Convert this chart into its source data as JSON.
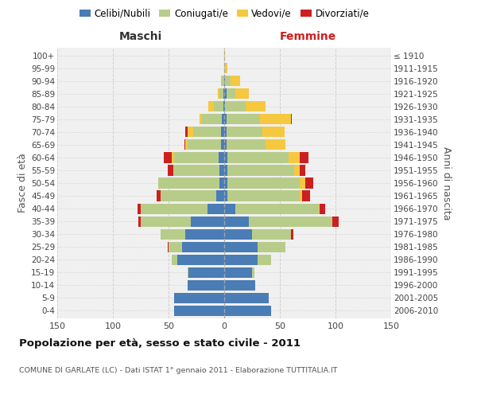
{
  "age_groups": [
    "0-4",
    "5-9",
    "10-14",
    "15-19",
    "20-24",
    "25-29",
    "30-34",
    "35-39",
    "40-44",
    "45-49",
    "50-54",
    "55-59",
    "60-64",
    "65-69",
    "70-74",
    "75-79",
    "80-84",
    "85-89",
    "90-94",
    "95-99",
    "100+"
  ],
  "birth_years": [
    "2006-2010",
    "2001-2005",
    "1996-2000",
    "1991-1995",
    "1986-1990",
    "1981-1985",
    "1976-1980",
    "1971-1975",
    "1966-1970",
    "1961-1965",
    "1956-1960",
    "1951-1955",
    "1946-1950",
    "1941-1945",
    "1936-1940",
    "1931-1935",
    "1926-1930",
    "1921-1925",
    "1916-1920",
    "1911-1915",
    "≤ 1910"
  ],
  "colors": {
    "celibi": "#4a7cb5",
    "coniugati": "#b8cc8a",
    "vedovi": "#f5c840",
    "divorziati": "#cc2020"
  },
  "maschi_celibi": [
    45,
    45,
    33,
    32,
    42,
    38,
    35,
    30,
    15,
    7,
    4,
    4,
    5,
    3,
    3,
    2,
    1,
    1,
    0,
    0,
    0
  ],
  "maschi_coniugati": [
    0,
    0,
    0,
    1,
    5,
    12,
    22,
    45,
    60,
    50,
    55,
    42,
    40,
    30,
    25,
    18,
    8,
    3,
    2,
    0,
    0
  ],
  "maschi_vedovi": [
    0,
    0,
    0,
    0,
    0,
    0,
    0,
    0,
    0,
    0,
    0,
    0,
    2,
    2,
    5,
    2,
    5,
    2,
    1,
    0,
    0
  ],
  "maschi_divorziati": [
    0,
    0,
    0,
    0,
    0,
    1,
    0,
    2,
    3,
    4,
    0,
    5,
    7,
    1,
    2,
    0,
    0,
    0,
    0,
    0,
    0
  ],
  "femmine_celibi": [
    42,
    40,
    28,
    25,
    30,
    30,
    25,
    22,
    10,
    3,
    3,
    3,
    3,
    2,
    2,
    2,
    1,
    2,
    1,
    0,
    0
  ],
  "femmine_coniugati": [
    0,
    0,
    0,
    2,
    12,
    25,
    35,
    75,
    75,
    65,
    65,
    60,
    55,
    35,
    32,
    30,
    18,
    8,
    5,
    1,
    0
  ],
  "femmine_vedovi": [
    0,
    0,
    0,
    0,
    0,
    0,
    0,
    0,
    1,
    2,
    5,
    5,
    10,
    18,
    20,
    28,
    18,
    12,
    8,
    2,
    1
  ],
  "femmine_divorziati": [
    0,
    0,
    0,
    0,
    0,
    0,
    2,
    6,
    5,
    7,
    7,
    5,
    8,
    0,
    0,
    1,
    0,
    0,
    0,
    0,
    0
  ],
  "title": "Popolazione per età, sesso e stato civile - 2011",
  "subtitle": "COMUNE DI GARLATE (LC) - Dati ISTAT 1° gennaio 2011 - Elaborazione TUTTITALIA.IT",
  "header_maschi": "Maschi",
  "header_femmine": "Femmine",
  "ylabel_left": "Fasce di età",
  "ylabel_right": "Anni di nascita",
  "xlim": 150,
  "legend_labels": [
    "Celibi/Nubili",
    "Coniugati/e",
    "Vedovi/e",
    "Divorziati/e"
  ],
  "bg_color": "#ffffff",
  "plot_bg": "#f0f0f0"
}
